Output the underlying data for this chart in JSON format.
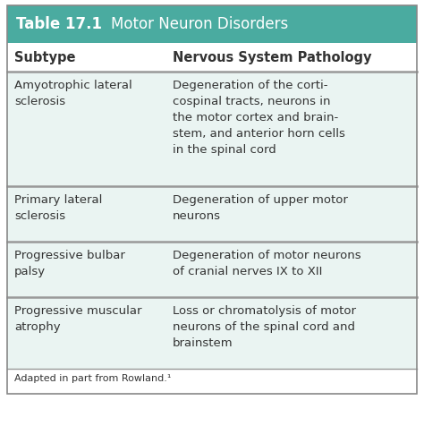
{
  "title_label": "Table 17.1",
  "title_text": "Motor Neuron Disorders",
  "header_bg": "#4aaba0",
  "header_text_color": "#ffffff",
  "col1_header": "Subtype",
  "col2_header": "Nervous System Pathology",
  "row_bg": "#eaf4f2",
  "col_header_bg": "#ffffff",
  "body_text_color": "#333333",
  "separator_color": "#999999",
  "footer_text": "Adapted in part from Rowland.¹",
  "rows": [
    {
      "subtype": "Amyotrophic lateral\nsclerosis",
      "pathology": "Degeneration of the corti-\ncospinal tracts, neurons in\nthe motor cortex and brain-\nstem, and anterior horn cells\nin the spinal cord"
    },
    {
      "subtype": "Primary lateral\nsclerosis",
      "pathology": "Degeneration of upper motor\nneurons"
    },
    {
      "subtype": "Progressive bulbar\npalsy",
      "pathology": "Degeneration of motor neurons\nof cranial nerves IX to XII"
    },
    {
      "subtype": "Progressive muscular\natrophy",
      "pathology": "Loss or chromatolysis of motor\nneurons of the spinal cord and\nbrainstem"
    }
  ],
  "figsize": [
    4.74,
    4.76
  ],
  "dpi": 100
}
